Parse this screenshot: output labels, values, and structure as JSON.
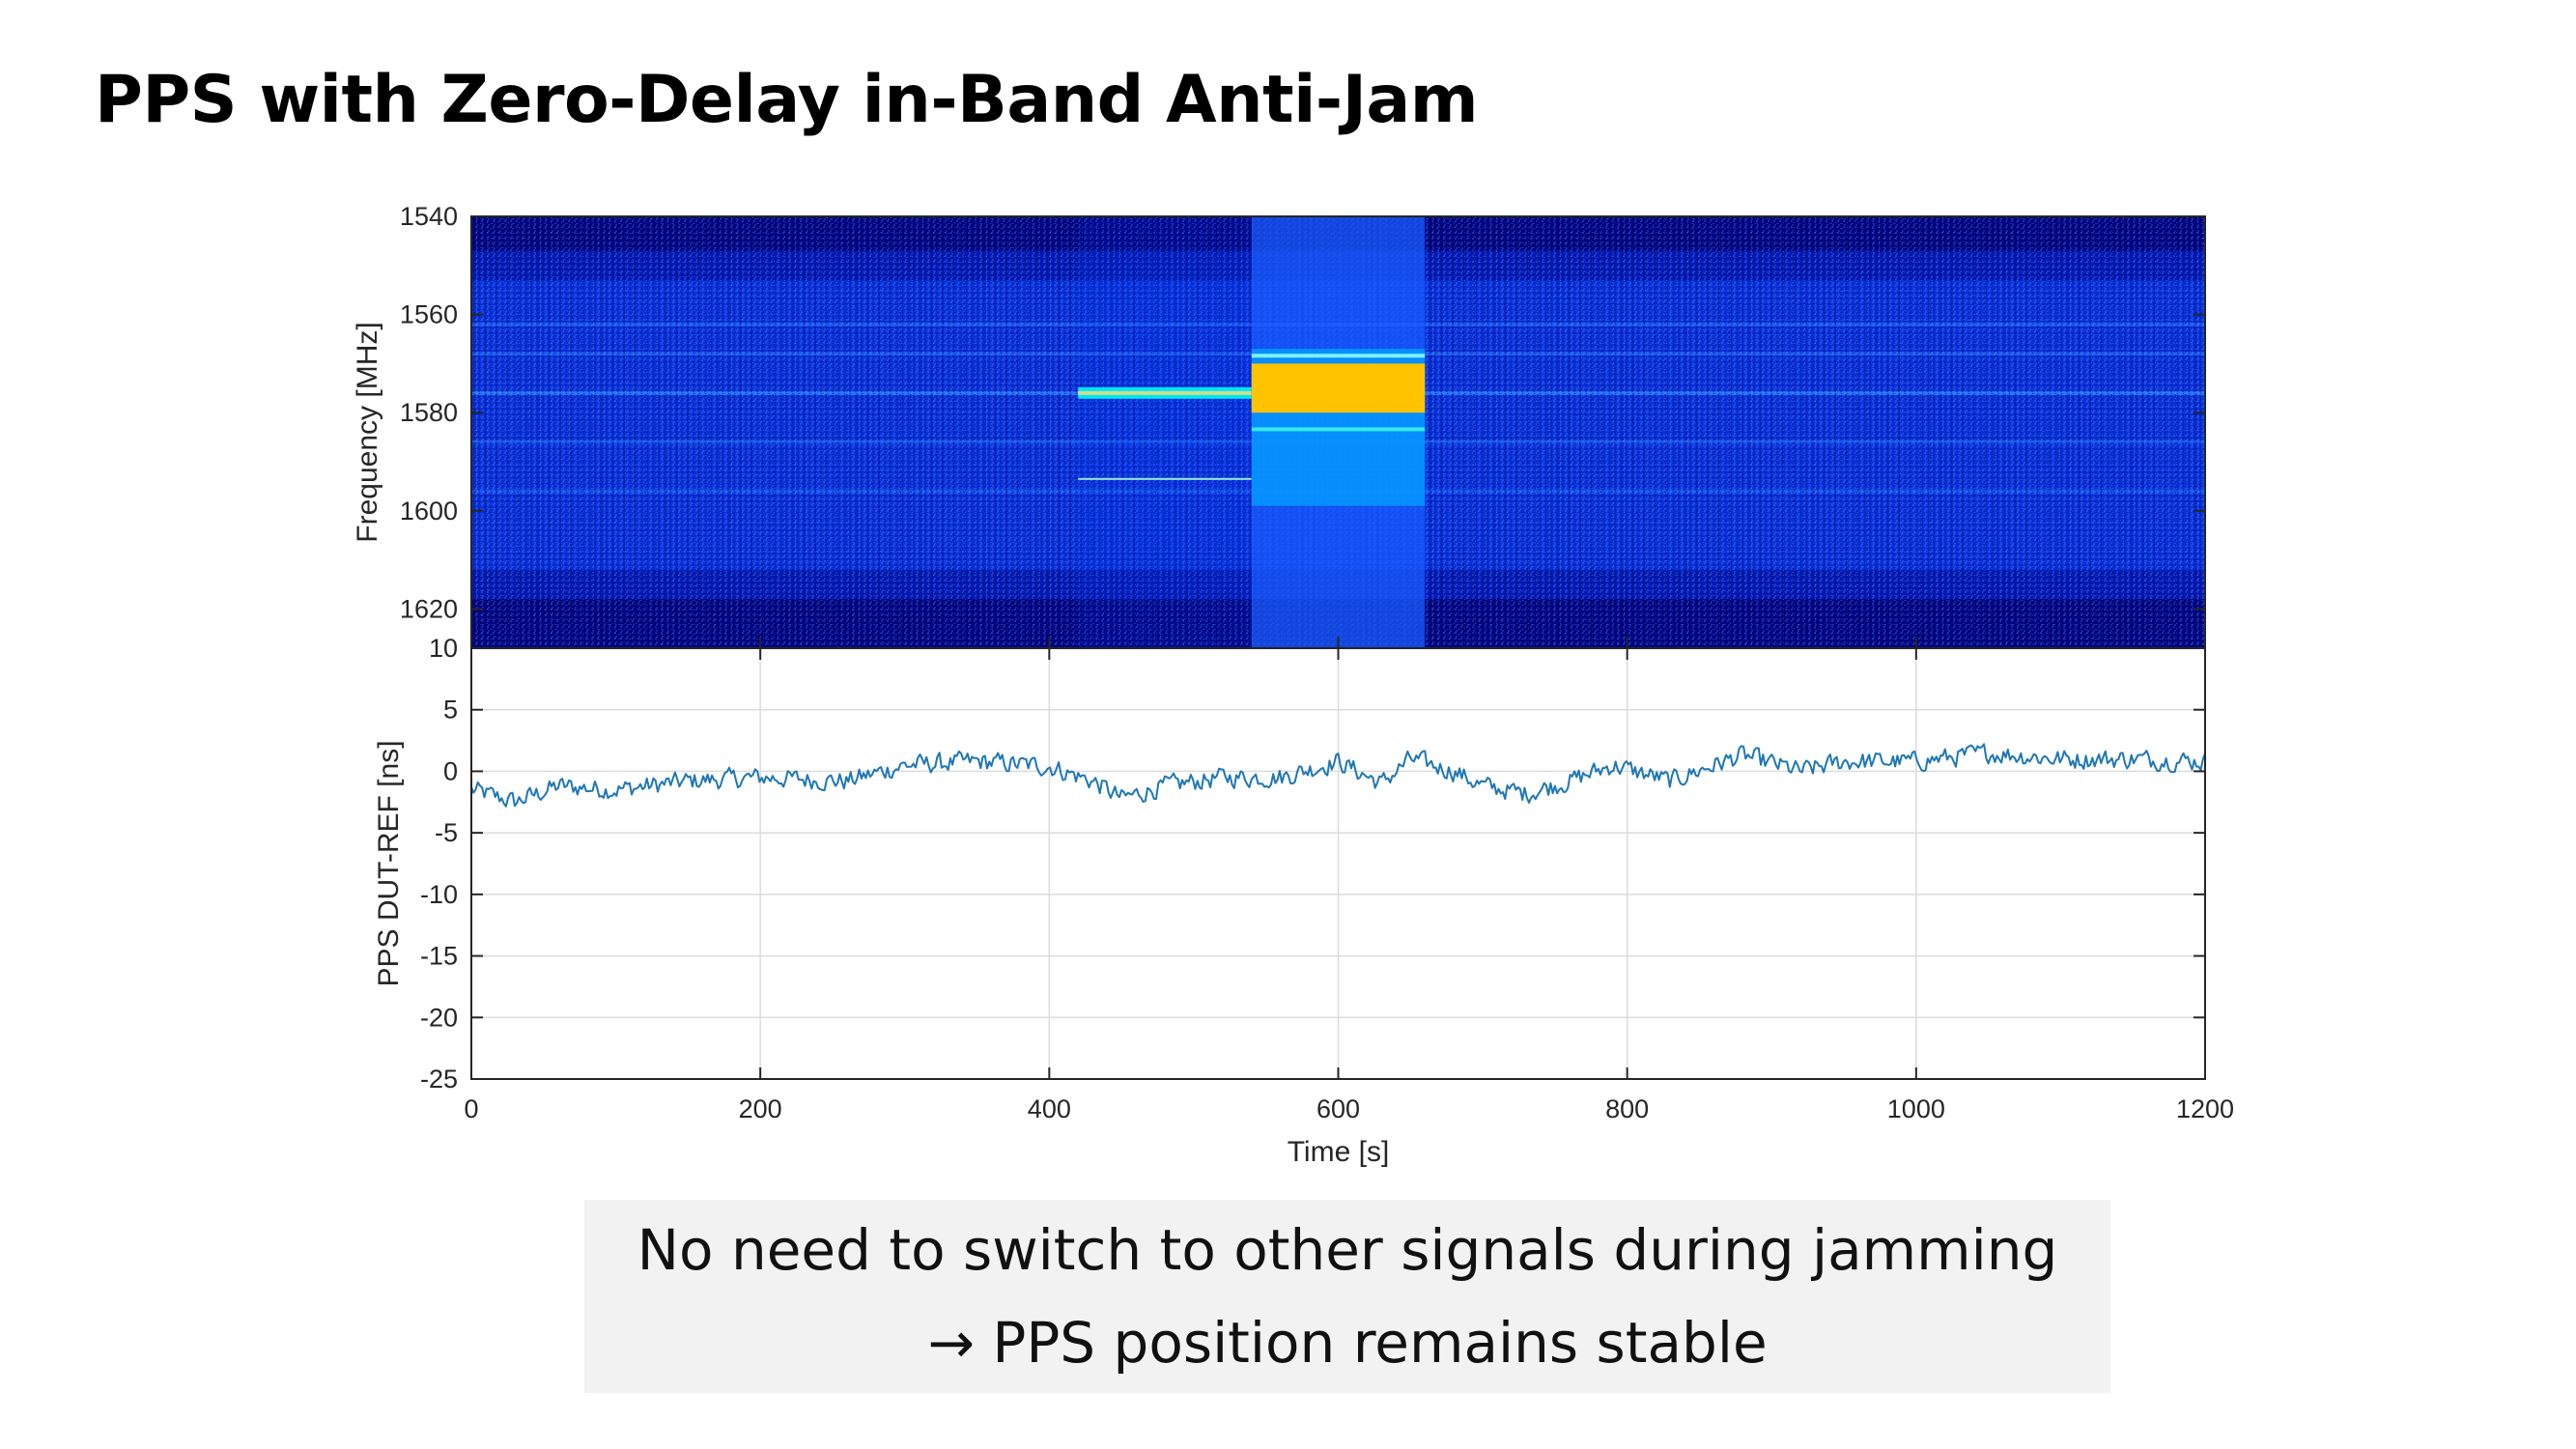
{
  "slide": {
    "title": "PPS with Zero-Delay in-Band Anti-Jam"
  },
  "caption": {
    "line1": "No need to switch to other signals during jamming",
    "line2": "→ PPS position remains stable"
  },
  "chart_data": [
    {
      "type": "heatmap",
      "ylabel": "Frequency [MHz]",
      "xlim": [
        0,
        1200
      ],
      "ylim": [
        1540,
        1628
      ],
      "y_reversed": true,
      "yticks": [
        1540,
        1560,
        1580,
        1600,
        1620
      ],
      "background_band_centers_mhz": [
        1562,
        1568,
        1576,
        1586,
        1596
      ],
      "jamming_events": [
        {
          "t_start": 420,
          "t_end": 540,
          "kind": "narrowband",
          "freq_mhz": 1576,
          "spur_mhz": 1593.5
        },
        {
          "t_start": 540,
          "t_end": 660,
          "kind": "wideband",
          "freq_range_mhz": [
            1570,
            1580
          ],
          "spread_mhz": [
            1567,
            1599
          ]
        }
      ],
      "colors": {
        "deep": "#00007a",
        "mid": "#0a2fd6",
        "bright": "#2a7cff",
        "jam": "#ffc300"
      }
    },
    {
      "type": "line",
      "xlabel": "Time [s]",
      "ylabel": "PPS DUT-REF [ns]",
      "xlim": [
        0,
        1200
      ],
      "ylim": [
        -25,
        10
      ],
      "xticks": [
        0,
        200,
        400,
        600,
        800,
        1000,
        1200
      ],
      "yticks": [
        10,
        5,
        0,
        -5,
        -10,
        -15,
        -20,
        -25
      ],
      "grid": true,
      "line_color": "#1f77b4",
      "trend": {
        "x": [
          0,
          30,
          60,
          100,
          150,
          200,
          260,
          300,
          350,
          400,
          430,
          450,
          480,
          520,
          560,
          600,
          630,
          650,
          680,
          700,
          730,
          760,
          790,
          830,
          860,
          880,
          920,
          950,
          1000,
          1050,
          1100,
          1150,
          1200
        ],
        "y": [
          -1.5,
          -2.5,
          -1.2,
          -1.5,
          -0.8,
          -0.5,
          -0.8,
          0.5,
          0.8,
          0.4,
          -0.8,
          -2.2,
          -1.2,
          -0.5,
          -0.5,
          0.8,
          -1.0,
          1.0,
          0.0,
          -1.2,
          -1.8,
          -0.8,
          0.5,
          -0.8,
          0.5,
          1.3,
          0.0,
          0.8,
          0.8,
          1.5,
          1.0,
          1.0,
          0.8
        ]
      },
      "noise_ns": 1.1
    }
  ]
}
